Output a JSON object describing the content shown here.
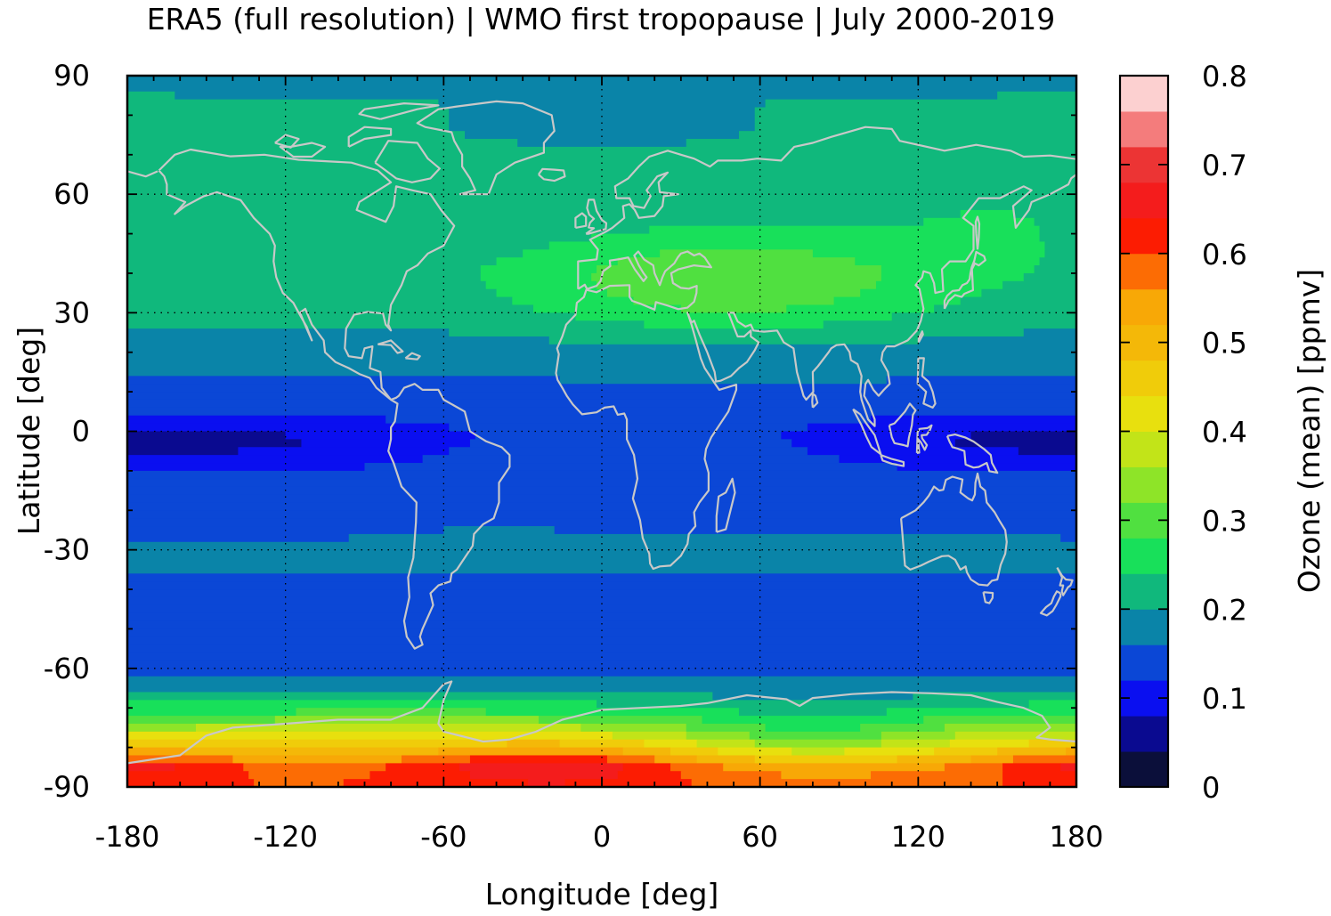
{
  "chart_data": {
    "type": "heatmap",
    "title": "ERA5 (full resolution) | WMO first tropopause | July 2000-2019",
    "xlabel": "Longitude [deg]",
    "ylabel": "Latitude [deg]",
    "colorbar_label": "Ozone (mean) [ppmv]",
    "xlim": [
      -180,
      180
    ],
    "ylim": [
      -90,
      90
    ],
    "x_ticks": [
      -180,
      -120,
      -60,
      0,
      60,
      120,
      180
    ],
    "y_ticks": [
      90,
      60,
      30,
      0,
      -30,
      -60,
      -90
    ],
    "x_tick_labels": [
      "-180",
      "-120",
      "-60",
      "0",
      "60",
      "120",
      "180"
    ],
    "y_tick_labels": [
      "90",
      "60",
      "30",
      "0",
      "-30",
      "-60",
      "-90"
    ],
    "grid": true,
    "colorbar": {
      "range": [
        0,
        0.8
      ],
      "tick_values": [
        0,
        0.1,
        0.2,
        0.3,
        0.4,
        0.5,
        0.6,
        0.7,
        0.8
      ],
      "tick_labels": [
        "0",
        "0.1",
        "0.2",
        "0.3",
        "0.4",
        "0.5",
        "0.6",
        "0.7",
        "0.8"
      ],
      "level_step": 0.04,
      "colors": [
        "#0b0f3a",
        "#0a0a90",
        "#0a0ff0",
        "#0b47d6",
        "#0a84a8",
        "#10b87c",
        "#18e05a",
        "#50e040",
        "#8ee428",
        "#c2e418",
        "#e8e00e",
        "#f0cc0a",
        "#f4b808",
        "#f8a806",
        "#fc6c04",
        "#fc1c02",
        "#f41c1c",
        "#ec3434",
        "#f47c7c",
        "#fcd0d0"
      ]
    },
    "latitude_profile": {
      "latitudes": [
        90,
        80,
        70,
        60,
        50,
        40,
        30,
        20,
        10,
        0,
        -10,
        -20,
        -30,
        -40,
        -50,
        -60,
        -65,
        -70,
        -75,
        -80,
        -85,
        -90
      ],
      "ozone_ppmv": [
        0.19,
        0.21,
        0.21,
        0.21,
        0.21,
        0.22,
        0.21,
        0.18,
        0.15,
        0.13,
        0.14,
        0.15,
        0.18,
        0.15,
        0.15,
        0.15,
        0.18,
        0.26,
        0.36,
        0.46,
        0.58,
        0.6
      ]
    },
    "maxima": [
      {
        "lon": 50,
        "lat": 38,
        "ozone_ppmv": 0.3
      },
      {
        "lon": -20,
        "lat": -84,
        "ozone_ppmv": 0.68
      },
      {
        "lon": -160,
        "lat": -83,
        "ozone_ppmv": 0.62
      },
      {
        "lon": 170,
        "lat": -83,
        "ozone_ppmv": 0.62
      }
    ],
    "minima": [
      {
        "lon": -120,
        "lat": -3,
        "ozone_ppmv": 0.09
      },
      {
        "lon": 140,
        "lat": -3,
        "ozone_ppmv": 0.09
      }
    ],
    "overlay": "coastlines"
  }
}
